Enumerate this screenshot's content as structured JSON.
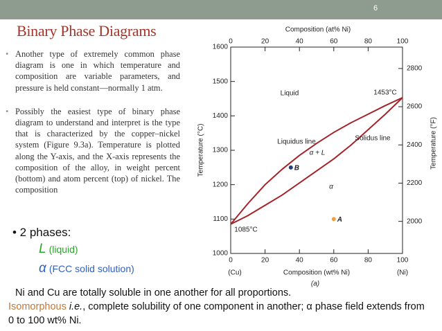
{
  "slide": {
    "page_number": "6",
    "title": "Binary Phase Diagrams",
    "bullets": [
      "Another type of extremely common phase diagram is one in which temperature and composition are variable parameters, and pressure is held constant—normally 1 atm.",
      "Possibly the easiest type of binary phase diagram to understand and interpret is the type that is characterized by the copper–nickel system (Figure 9.3a). Temperature is plotted along the Y-axis, and the X-axis represents the composition of the alloy, in weight percent (bottom) and atom percent (top) of nickel. The composition"
    ],
    "phases": {
      "heading": "• 2 phases:",
      "items": [
        {
          "symbol": "L",
          "label": "(liquid)",
          "color": "#2aa52a"
        },
        {
          "symbol": "α",
          "label": "(FCC solid solution)",
          "color": "#2f5fc4"
        }
      ]
    },
    "footer": {
      "line1": "Ni and Cu are totally soluble in one another for all proportions.",
      "line2": [
        "Isomorphous",
        " i.e.",
        ", complete solubility of one component in another; α phase  field extends from 0 to 100 wt% Ni."
      ]
    }
  },
  "chart_data": {
    "type": "line",
    "caption": "(a)",
    "x_label": "Composition (wt% Ni)",
    "x2_label": "Composition (at% Ni)",
    "y_label": "Temperature (°C)",
    "y2_label": "Temperature (°F)",
    "x_end_labels": [
      "(Cu)",
      "(Ni)"
    ],
    "x": [
      0,
      10,
      20,
      30,
      40,
      50,
      60,
      70,
      80,
      90,
      100
    ],
    "series": [
      {
        "name": "Liquidus line",
        "color": "#a3232a",
        "values": [
          1085,
          1145,
          1200,
          1245,
          1285,
          1320,
          1352,
          1380,
          1405,
          1430,
          1453
        ]
      },
      {
        "name": "Solidus line",
        "color": "#a3232a",
        "values": [
          1085,
          1110,
          1140,
          1170,
          1205,
          1240,
          1275,
          1315,
          1360,
          1405,
          1453
        ]
      }
    ],
    "points": [
      {
        "label": "A",
        "x": 60,
        "y": 1100,
        "color": "#f0a040"
      },
      {
        "label": "B",
        "x": 35,
        "y": 1250,
        "color": "#1f3f7a"
      }
    ],
    "annotations": [
      "Liquid",
      "1453°C",
      "α + L",
      "α",
      "1085°C"
    ],
    "xlim": [
      0,
      100
    ],
    "xticks": [
      0,
      20,
      40,
      60,
      80,
      100
    ],
    "x2lim": [
      0,
      100
    ],
    "x2ticks": [
      0,
      20,
      40,
      60,
      80,
      100
    ],
    "ylim": [
      1000,
      1600
    ],
    "yticks": [
      1000,
      1100,
      1200,
      1300,
      1400,
      1500,
      1600
    ],
    "y2lim": [
      1832,
      2912
    ],
    "y2ticks": [
      2000,
      2200,
      2400,
      2600,
      2800
    ]
  }
}
